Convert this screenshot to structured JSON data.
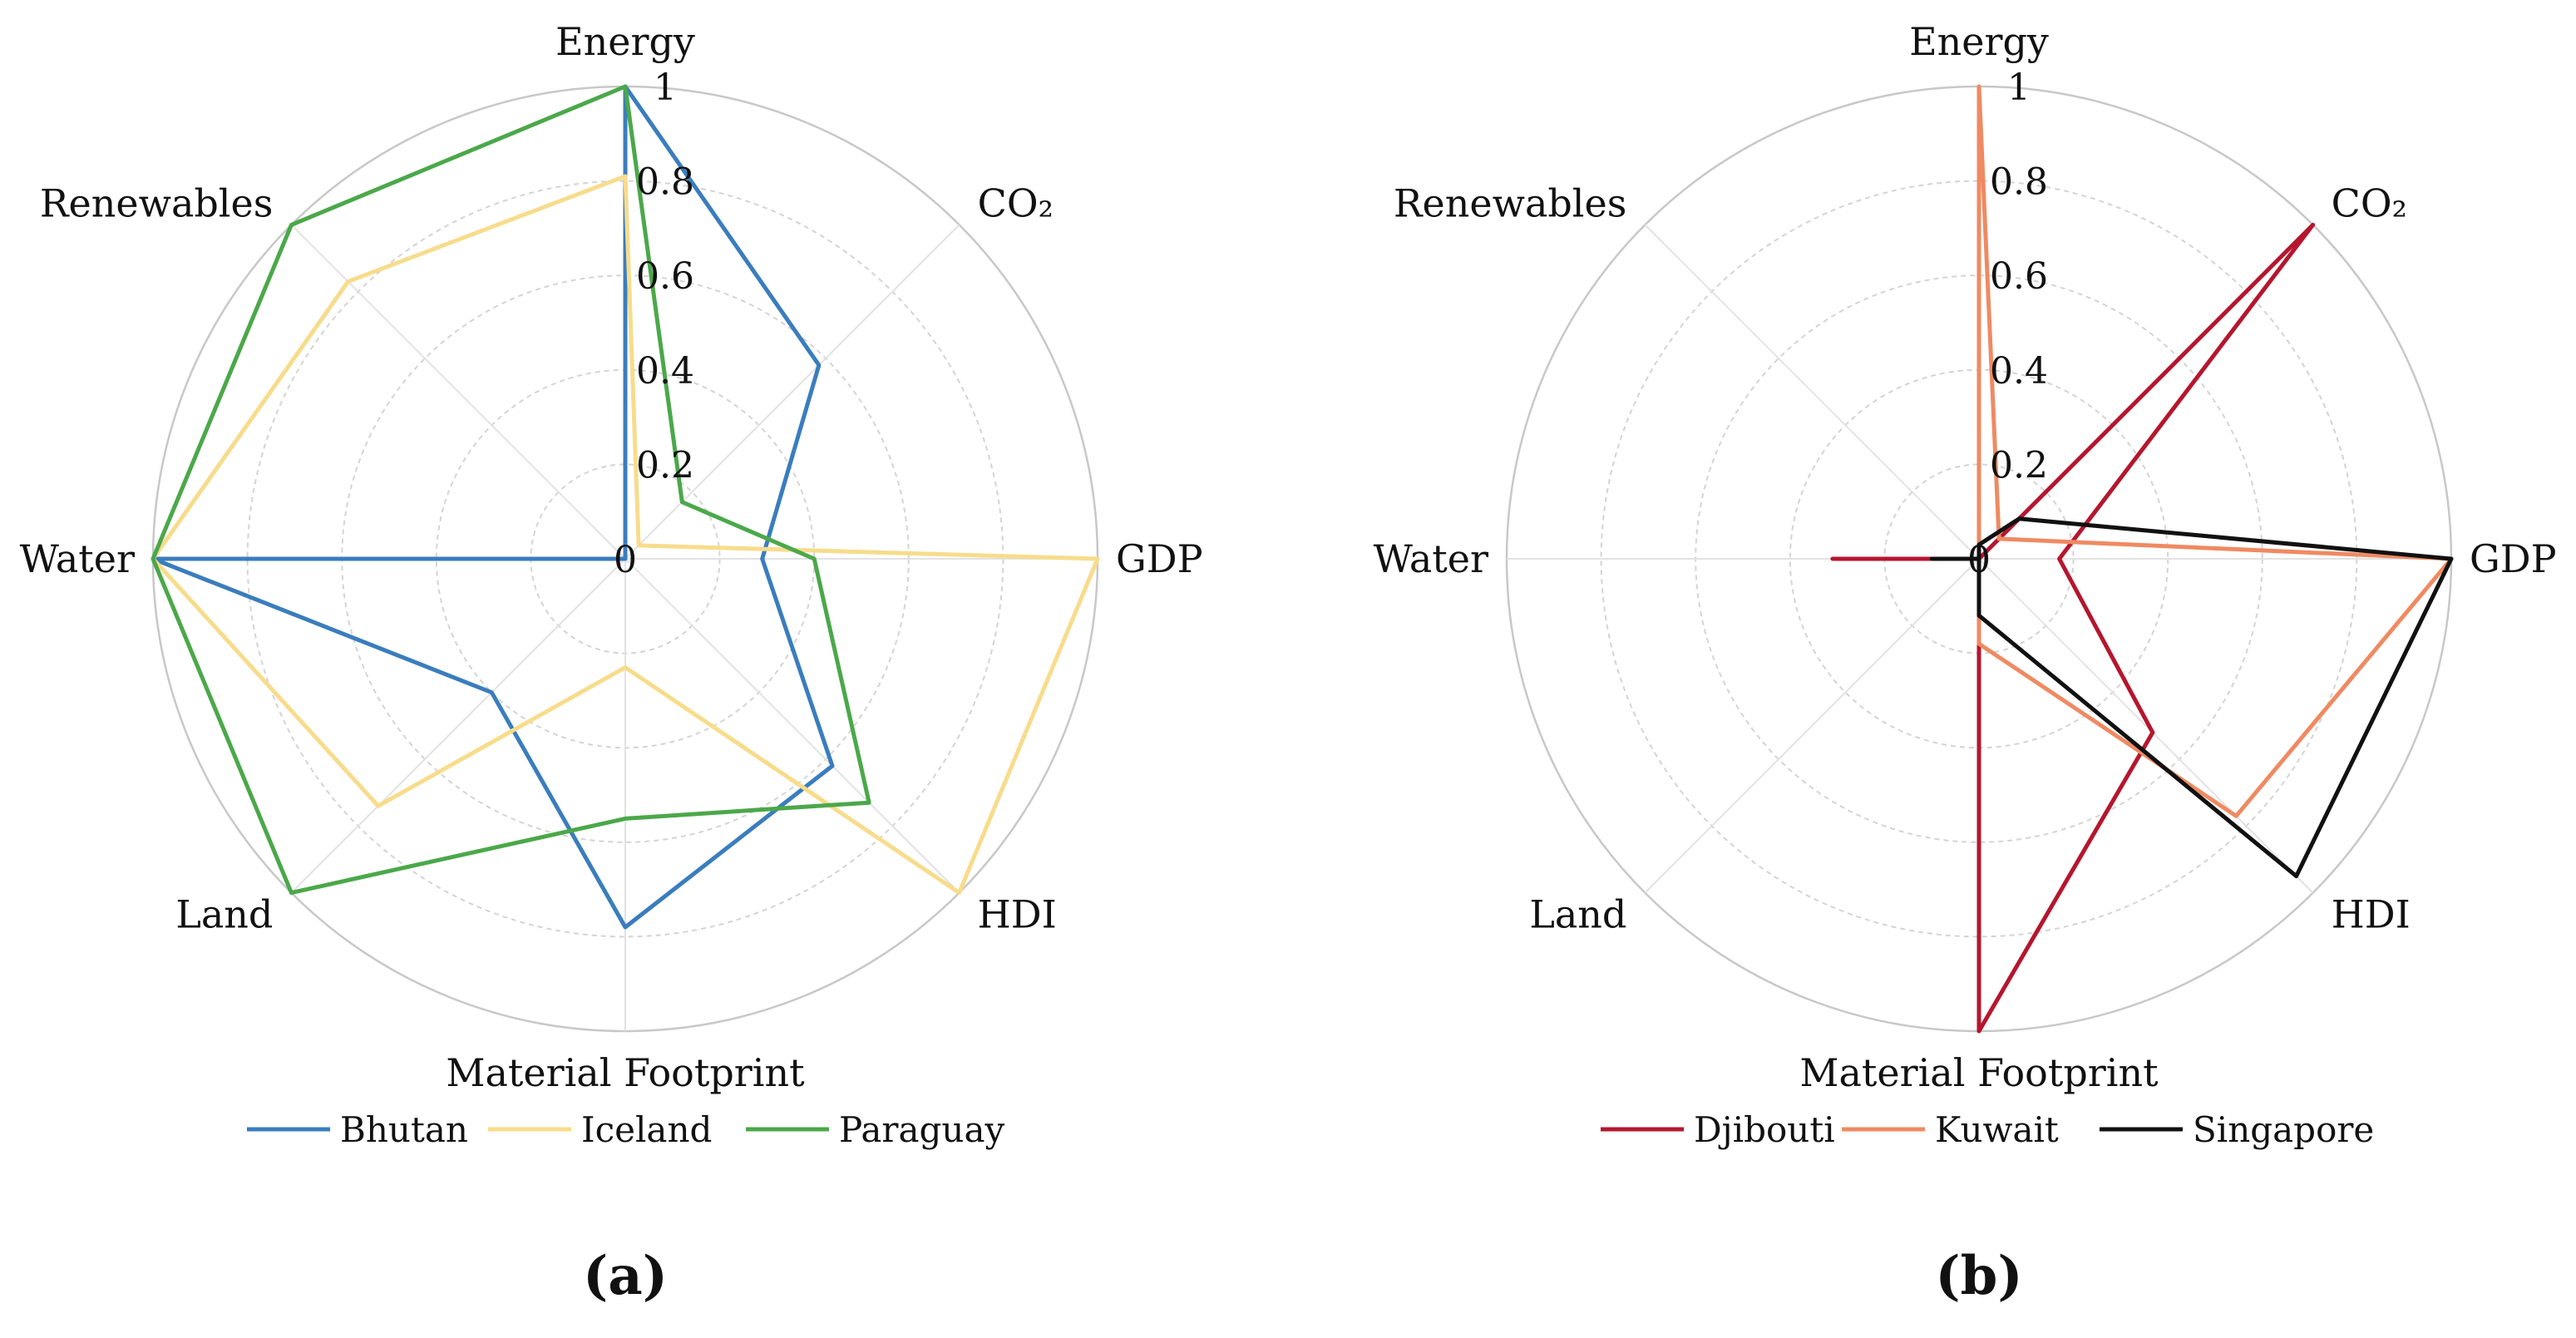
{
  "chart_data": [
    {
      "type": "radar",
      "panel_label": "(a)",
      "axes": [
        "Energy",
        "CO₂",
        "GDP",
        "HDI",
        "Material Footprint",
        "Land",
        "Water",
        "Renewables"
      ],
      "radial_ticks": [
        "0",
        "0.2",
        "0.4",
        "0.6",
        "0.8",
        "1"
      ],
      "rlim": [
        0,
        1
      ],
      "series": [
        {
          "name": "Bhutan",
          "color": "#3a7dbd",
          "values": [
            1.0,
            0.58,
            0.29,
            0.62,
            0.78,
            0.4,
            1.0,
            0.0
          ]
        },
        {
          "name": "Iceland",
          "color": "#f7dc8b",
          "values": [
            0.81,
            0.04,
            1.0,
            1.0,
            0.23,
            0.74,
            1.0,
            0.83
          ]
        },
        {
          "name": "Paraguay",
          "color": "#4ba84a",
          "values": [
            1.0,
            0.17,
            0.4,
            0.73,
            0.55,
            1.0,
            1.0,
            1.0
          ]
        }
      ]
    },
    {
      "type": "radar",
      "panel_label": "(b)",
      "axes": [
        "Energy",
        "CO₂",
        "GDP",
        "HDI",
        "Material Footprint",
        "Land",
        "Water",
        "Renewables"
      ],
      "radial_ticks": [
        "0",
        "0.2",
        "0.4",
        "0.6",
        "0.8",
        "1"
      ],
      "rlim": [
        0,
        1
      ],
      "series": [
        {
          "name": "Djibouti",
          "color": "#b5162e",
          "values": [
            0.0,
            1.0,
            0.17,
            0.52,
            1.0,
            0.0,
            0.31,
            0.0
          ]
        },
        {
          "name": "Kuwait",
          "color": "#ef8a62",
          "values": [
            1.0,
            0.06,
            1.0,
            0.77,
            0.18,
            0.0,
            0.05,
            0.0
          ]
        },
        {
          "name": "Singapore",
          "color": "#111111",
          "values": [
            0.03,
            0.12,
            1.0,
            0.95,
            0.12,
            0.0,
            0.1,
            0.0
          ]
        }
      ]
    }
  ]
}
